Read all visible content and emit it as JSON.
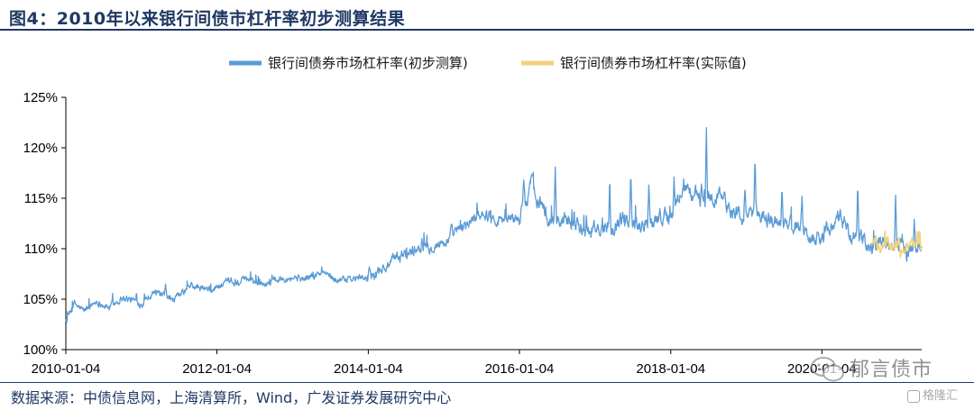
{
  "figure": {
    "title": "图4：2010年以来银行间债市杠杆率初步测算结果",
    "source": "数据来源：中债信息网，上海清算所，Wind，广发证券发展研究中心"
  },
  "watermark": {
    "account": "郁言债市",
    "logo_text": "格隆汇"
  },
  "chart_data": {
    "type": "line",
    "title": "",
    "xlabel": "",
    "ylabel": "",
    "x_ticks": [
      "2010-01-04",
      "2012-01-04",
      "2014-01-04",
      "2016-01-04",
      "2018-01-04",
      "2020-01-04"
    ],
    "x_range": [
      "2010-01-04",
      "2021-04-30"
    ],
    "y_ticks": [
      "100%",
      "105%",
      "110%",
      "115%",
      "120%",
      "125%"
    ],
    "ylim": [
      100,
      125
    ],
    "y_unit": "%",
    "grid": false,
    "legend_position": "top",
    "series": [
      {
        "name": "银行间债券市场杠杆率(初步测算)",
        "color": "#5b9bd5",
        "points": [
          [
            "2010-01-04",
            102.8
          ],
          [
            "2010-02-15",
            104.5
          ],
          [
            "2010-04-01",
            103.8
          ],
          [
            "2010-06-01",
            104.8
          ],
          [
            "2010-08-01",
            104.2
          ],
          [
            "2010-10-01",
            105.2
          ],
          [
            "2011-01-04",
            104.6
          ],
          [
            "2011-03-01",
            105.8
          ],
          [
            "2011-06-01",
            104.7
          ],
          [
            "2011-09-01",
            106.3
          ],
          [
            "2011-12-01",
            105.8
          ],
          [
            "2012-01-04",
            106.2
          ],
          [
            "2012-03-01",
            106.5
          ],
          [
            "2012-06-01",
            106.9
          ],
          [
            "2012-09-01",
            106.6
          ],
          [
            "2012-12-01",
            107.3
          ],
          [
            "2013-03-01",
            107.0
          ],
          [
            "2013-06-01",
            107.6
          ],
          [
            "2013-09-01",
            106.8
          ],
          [
            "2013-12-01",
            107.1
          ],
          [
            "2014-01-04",
            107.2
          ],
          [
            "2014-04-01",
            108.3
          ],
          [
            "2014-07-01",
            109.5
          ],
          [
            "2014-10-01",
            110.3
          ],
          [
            "2015-01-04",
            110.6
          ],
          [
            "2015-04-01",
            112.0
          ],
          [
            "2015-07-01",
            113.6
          ],
          [
            "2015-10-01",
            112.9
          ],
          [
            "2016-01-04",
            113.1
          ],
          [
            "2016-03-01",
            116.5
          ],
          [
            "2016-06-01",
            112.6
          ],
          [
            "2016-09-01",
            113.3
          ],
          [
            "2016-12-01",
            111.6
          ],
          [
            "2017-03-01",
            112.2
          ],
          [
            "2017-06-01",
            113.1
          ],
          [
            "2017-09-01",
            112.4
          ],
          [
            "2017-12-01",
            113.3
          ],
          [
            "2018-01-04",
            113.0
          ],
          [
            "2018-03-01",
            116.1
          ],
          [
            "2018-06-01",
            114.8
          ],
          [
            "2018-09-01",
            115.2
          ],
          [
            "2018-12-01",
            113.3
          ],
          [
            "2019-03-01",
            113.4
          ],
          [
            "2019-06-01",
            112.6
          ],
          [
            "2019-09-01",
            112.4
          ],
          [
            "2019-12-01",
            110.9
          ],
          [
            "2020-02-01",
            111.8
          ],
          [
            "2020-04-01",
            113.0
          ],
          [
            "2020-06-01",
            111.2
          ],
          [
            "2020-09-01",
            110.3
          ],
          [
            "2020-12-01",
            110.5
          ],
          [
            "2021-02-01",
            109.8
          ],
          [
            "2021-04-30",
            110.4
          ]
        ],
        "spikes": [
          [
            "2011-05-01",
            106.5
          ],
          [
            "2013-06-20",
            107.6
          ],
          [
            "2014-09-20",
            111.0
          ],
          [
            "2015-02-10",
            112.5
          ],
          [
            "2016-01-25",
            116.8
          ],
          [
            "2016-06-25",
            118.1
          ],
          [
            "2017-03-15",
            117.1
          ],
          [
            "2017-06-25",
            117.6
          ],
          [
            "2017-09-20",
            116.3
          ],
          [
            "2018-01-20",
            117.1
          ],
          [
            "2018-06-01",
            116.4
          ],
          [
            "2018-06-25",
            122.0
          ],
          [
            "2018-09-20",
            115.8
          ],
          [
            "2018-12-28",
            115.8
          ],
          [
            "2019-02-15",
            119.4
          ],
          [
            "2019-06-25",
            116.1
          ],
          [
            "2019-09-30",
            115.2
          ],
          [
            "2020-06-25",
            116.8
          ],
          [
            "2020-12-25",
            115.3
          ],
          [
            "2021-03-25",
            112.9
          ]
        ]
      },
      {
        "name": "银行间债券市场杠杆率(实际值)",
        "color": "#f2d27a",
        "points": [
          [
            "2020-09-01",
            110.6
          ],
          [
            "2020-10-15",
            109.8
          ],
          [
            "2020-12-01",
            110.3
          ],
          [
            "2021-01-15",
            109.6
          ],
          [
            "2021-03-01",
            110.4
          ],
          [
            "2021-04-30",
            110.1
          ]
        ],
        "spikes": [
          [
            "2020-09-20",
            111.4
          ],
          [
            "2020-11-15",
            111.2
          ],
          [
            "2021-01-10",
            111.3
          ],
          [
            "2021-03-15",
            111.2
          ],
          [
            "2021-04-20",
            112.0
          ]
        ]
      }
    ]
  }
}
